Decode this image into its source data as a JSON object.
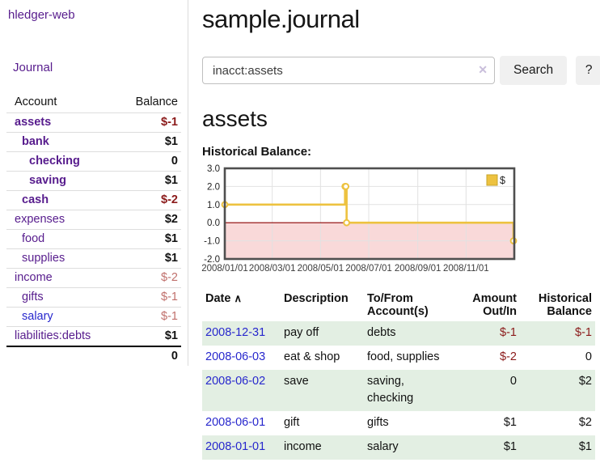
{
  "sidebar": {
    "brand": "hledger-web",
    "journal_label": "Journal",
    "accounts_table": {
      "headers": [
        "Account",
        "Balance"
      ],
      "rows": [
        {
          "account": "assets",
          "indent": 0,
          "bold": true,
          "color": "purple",
          "balance": "$-1",
          "balance_style": "negative-strong"
        },
        {
          "account": "bank",
          "indent": 1,
          "bold": true,
          "color": "purple",
          "balance": "$1",
          "balance_style": "positive"
        },
        {
          "account": "checking",
          "indent": 2,
          "bold": true,
          "color": "purple",
          "balance": "0",
          "balance_style": "positive"
        },
        {
          "account": "saving",
          "indent": 2,
          "bold": true,
          "color": "purple",
          "balance": "$1",
          "balance_style": "positive"
        },
        {
          "account": "cash",
          "indent": 1,
          "bold": true,
          "color": "purple",
          "balance": "$-2",
          "balance_style": "negative-strong"
        },
        {
          "account": "expenses",
          "indent": 0,
          "bold": false,
          "color": "purple",
          "balance": "$2",
          "balance_style": "positive"
        },
        {
          "account": "food",
          "indent": 1,
          "bold": false,
          "color": "purple",
          "balance": "$1",
          "balance_style": "positive"
        },
        {
          "account": "supplies",
          "indent": 1,
          "bold": false,
          "color": "purple",
          "balance": "$1",
          "balance_style": "positive"
        },
        {
          "account": "income",
          "indent": 0,
          "bold": false,
          "color": "purple",
          "balance": "$-2",
          "balance_style": "negative-muted"
        },
        {
          "account": "gifts",
          "indent": 1,
          "bold": false,
          "color": "purple",
          "balance": "$-1",
          "balance_style": "negative-muted"
        },
        {
          "account": "salary",
          "indent": 1,
          "bold": false,
          "color": "blue",
          "balance": "$-1",
          "balance_style": "negative-muted"
        },
        {
          "account": "liabilities:debts",
          "indent": 0,
          "bold": false,
          "color": "purple",
          "balance": "$1",
          "balance_style": "positive"
        }
      ],
      "total": "0"
    }
  },
  "header": {
    "title": "sample.journal"
  },
  "search": {
    "value": "inacct:assets",
    "clear_icon": "✕",
    "button_label": "Search",
    "help_label": "?"
  },
  "account_page": {
    "heading": "assets",
    "chart_label": "Historical Balance:"
  },
  "chart_data": {
    "type": "line",
    "step": true,
    "title": "Historical Balance",
    "series": [
      {
        "name": "$",
        "color": "#edc240",
        "points": [
          [
            "2008-01-01",
            1
          ],
          [
            "2008-06-01",
            2
          ],
          [
            "2008-06-02",
            2
          ],
          [
            "2008-06-03",
            0
          ],
          [
            "2008-12-31",
            -1
          ]
        ]
      }
    ],
    "x_range": [
      "2008-01-01",
      "2009-01-01"
    ],
    "ylim": [
      -2,
      3
    ],
    "y_ticks": [
      3.0,
      2.0,
      1.0,
      0.0,
      -1.0,
      -2.0
    ],
    "x_ticks": [
      "2008/01/01",
      "2008/03/01",
      "2008/05/01",
      "2008/07/01",
      "2008/09/01",
      "2008/11/01"
    ],
    "legend_position": "top-right",
    "grid": true,
    "colors": {
      "grid": "#e2e2e2",
      "plot_border": "#4f4f4f",
      "zero_line": "#8b0000",
      "negative_region": "#f9d9d9",
      "marker_fill": "#ffffff"
    }
  },
  "register_table": {
    "headers": [
      "Date",
      "Description",
      "To/From Account(s)",
      "Amount Out/In",
      "Historical Balance"
    ],
    "sort_icon": "∧",
    "rows": [
      {
        "date": "2008-12-31",
        "description": "pay off",
        "accounts": "debts",
        "amount": "$-1",
        "amount_negative": true,
        "balance": "$-1",
        "balance_negative": true,
        "stripe": true
      },
      {
        "date": "2008-06-03",
        "description": "eat & shop",
        "accounts": "food, supplies",
        "amount": "$-2",
        "amount_negative": true,
        "balance": "0",
        "balance_negative": false,
        "stripe": false
      },
      {
        "date": "2008-06-02",
        "description": "save",
        "accounts": "saving, checking",
        "amount": "0",
        "amount_negative": false,
        "balance": "$2",
        "balance_negative": false,
        "stripe": true
      },
      {
        "date": "2008-06-01",
        "description": "gift",
        "accounts": "gifts",
        "amount": "$1",
        "amount_negative": false,
        "balance": "$2",
        "balance_negative": false,
        "stripe": false
      },
      {
        "date": "2008-01-01",
        "description": "income",
        "accounts": "salary",
        "amount": "$1",
        "amount_negative": false,
        "balance": "$1",
        "balance_negative": false,
        "stripe": true
      }
    ]
  },
  "colors": {
    "accent_purple": "#571c8d",
    "link_blue": "#2727cd",
    "negative_strong": "#8b1a1a",
    "negative_muted": "#c0706c",
    "row_stripe_green": "#e3efe3",
    "chart_gold": "#edc240"
  }
}
